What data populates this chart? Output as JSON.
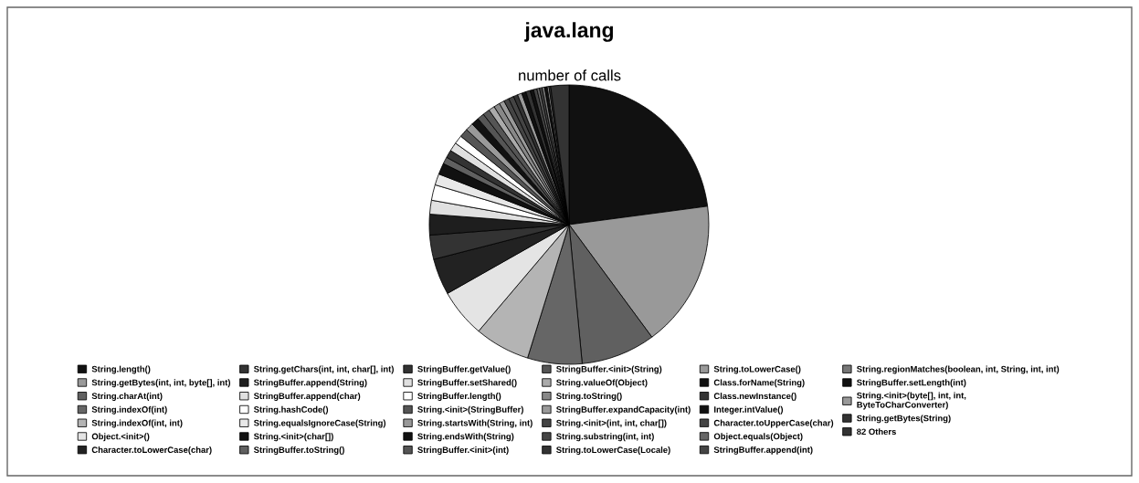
{
  "chart_data": {
    "type": "pie",
    "title": "java.lang",
    "subtitle": "number of calls",
    "categories": [
      "String.length()",
      "String.getBytes(int, int, byte[], int)",
      "String.charAt(int)",
      "String.indexOf(int)",
      "String.indexOf(int, int)",
      "Object.<init>()",
      "Character.toLowerCase(char)",
      "String.getChars(int, int, char[], int)",
      "StringBuffer.append(String)",
      "StringBuffer.append(char)",
      "String.hashCode()",
      "String.equalsIgnoreCase(String)",
      "String.<init>(char[])",
      "StringBuffer.toString()",
      "StringBuffer.getValue()",
      "StringBuffer.setShared()",
      "StringBuffer.length()",
      "String.<init>(StringBuffer)",
      "String.startsWith(String, int)",
      "String.endsWith(String)",
      "StringBuffer.<init>(int)",
      "StringBuffer.<init>(String)",
      "String.valueOf(Object)",
      "String.toString()",
      "StringBuffer.expandCapacity(int)",
      "String.<init>(int, int, char[])",
      "String.substring(int, int)",
      "String.toLowerCase(Locale)",
      "String.toLowerCase()",
      "Class.forName(String)",
      "Class.newInstance()",
      "Integer.intValue()",
      "Character.toUpperCase(char)",
      "Object.equals(Object)",
      "StringBuffer.append(int)",
      "String.regionMatches(boolean, int, String, int, int)",
      "StringBuffer.setLength(int)",
      "String.<init>(byte[], int, int,\nByteToCharConverter)",
      "String.getBytes(String)",
      "82 Others"
    ],
    "values": [
      22.9,
      17.0,
      8.6,
      6.3,
      6.4,
      5.6,
      4.2,
      2.8,
      2.4,
      1.6,
      1.8,
      1.3,
      1.3,
      0.8,
      0.9,
      1.0,
      1.0,
      1.0,
      0.9,
      0.9,
      0.8,
      0.8,
      0.7,
      0.7,
      0.6,
      0.6,
      0.6,
      0.5,
      0.5,
      0.5,
      0.5,
      0.4,
      0.4,
      0.3,
      0.3,
      0.3,
      0.3,
      0.2,
      0.2,
      2.1
    ],
    "colors": [
      "#111111",
      "#999999",
      "#606060",
      "#666666",
      "#b4b4b4",
      "#e4e4e4",
      "#222222",
      "#333333",
      "#1e1e1e",
      "#e0e0e0",
      "#ffffff",
      "#e8e8e8",
      "#111111",
      "#606060",
      "#333333",
      "#e0e0e0",
      "#ffffff",
      "#555555",
      "#999999",
      "#111111",
      "#555555",
      "#555555",
      "#aaaaaa",
      "#888888",
      "#999999",
      "#444444",
      "#444444",
      "#333333",
      "#999999",
      "#111111",
      "#333333",
      "#111111",
      "#444444",
      "#666666",
      "#444444",
      "#777777",
      "#111111",
      "#999999",
      "#333333",
      "#333333"
    ],
    "legend": "bottom"
  }
}
